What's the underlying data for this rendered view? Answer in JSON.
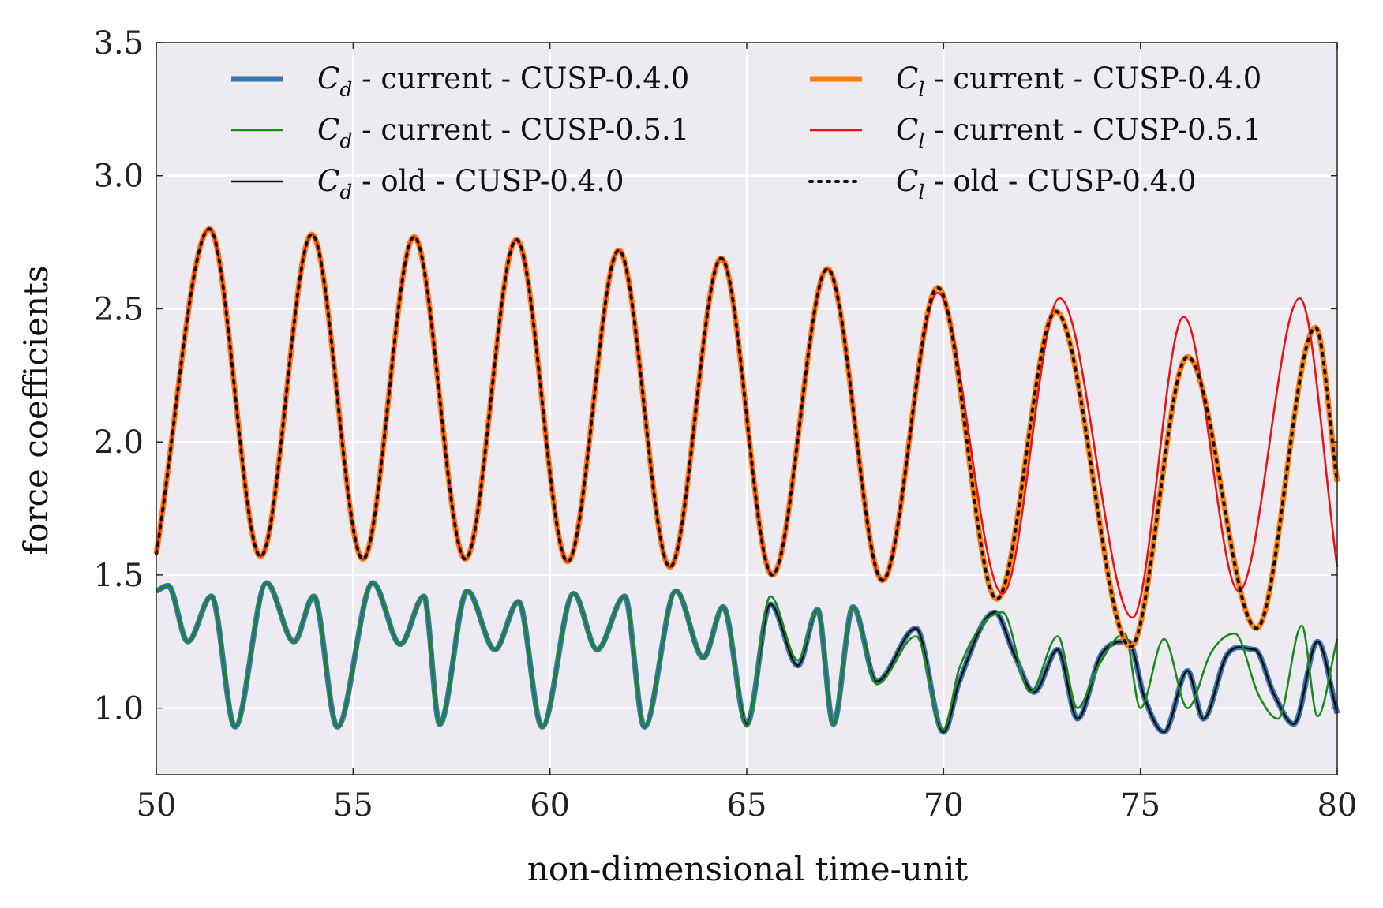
{
  "chart_data": {
    "type": "line",
    "title": "",
    "xlabel": "non-dimensional time-unit",
    "ylabel": "force coefficients",
    "xlim": [
      50,
      80
    ],
    "ylim": [
      0.75,
      3.5
    ],
    "xticks": [
      "50",
      "55",
      "60",
      "65",
      "70",
      "75",
      "80"
    ],
    "yticks": [
      "1.0",
      "1.5",
      "2.0",
      "2.5",
      "3.0",
      "3.5"
    ],
    "grid": true,
    "legend_position": "top",
    "background": "#eeeaf2",
    "series": [
      {
        "name": "C_d - current - CUSP-0.4.0",
        "label_symbol": "C",
        "label_sub": "d",
        "label_rest": " - current - CUSP-0.4.0",
        "color": "#3a77b0",
        "style": "thick",
        "x": [
          50.0,
          50.3,
          50.8,
          51.4,
          52.0,
          52.8,
          53.5,
          54.0,
          54.6,
          55.5,
          56.2,
          56.8,
          57.2,
          57.9,
          58.6,
          59.2,
          59.8,
          60.6,
          61.2,
          61.9,
          62.4,
          63.2,
          63.9,
          64.4,
          65.0,
          65.6,
          66.3,
          66.8,
          67.2,
          67.7,
          68.3,
          69.3,
          70.0,
          70.4,
          71.3,
          71.8,
          72.3,
          72.9,
          73.4,
          74.0,
          74.7,
          75.1,
          75.6,
          76.2,
          76.6,
          77.2,
          77.9,
          78.4,
          78.9,
          79.5,
          80.0
        ],
        "y": [
          1.44,
          1.46,
          1.25,
          1.42,
          0.93,
          1.47,
          1.25,
          1.42,
          0.93,
          1.47,
          1.24,
          1.42,
          0.94,
          1.44,
          1.22,
          1.4,
          0.93,
          1.43,
          1.22,
          1.42,
          0.93,
          1.44,
          1.19,
          1.38,
          0.94,
          1.39,
          1.16,
          1.37,
          0.94,
          1.38,
          1.1,
          1.3,
          0.91,
          1.1,
          1.36,
          1.2,
          1.06,
          1.22,
          0.96,
          1.2,
          1.25,
          1.04,
          0.91,
          1.14,
          0.96,
          1.2,
          1.22,
          1.05,
          0.94,
          1.25,
          0.98
        ]
      },
      {
        "name": "C_d - current - CUSP-0.5.1",
        "label_symbol": "C",
        "label_sub": "d",
        "label_rest": " - current - CUSP-0.5.1",
        "color": "#1a8a1a",
        "style": "thin",
        "x": [
          50.0,
          50.3,
          50.8,
          51.4,
          52.0,
          52.8,
          53.5,
          54.0,
          54.6,
          55.5,
          56.2,
          56.8,
          57.2,
          57.9,
          58.6,
          59.2,
          59.8,
          60.6,
          61.2,
          61.9,
          62.4,
          63.2,
          63.9,
          64.4,
          65.0,
          65.6,
          66.3,
          66.8,
          67.2,
          67.7,
          68.3,
          69.3,
          70.0,
          70.4,
          71.5,
          72.2,
          72.9,
          73.4,
          73.9,
          74.6,
          75.0,
          75.6,
          76.2,
          76.8,
          77.4,
          78.0,
          78.5,
          79.1,
          79.5,
          80.0
        ],
        "y": [
          1.44,
          1.46,
          1.25,
          1.42,
          0.93,
          1.47,
          1.25,
          1.42,
          0.93,
          1.47,
          1.24,
          1.42,
          0.94,
          1.44,
          1.22,
          1.4,
          0.93,
          1.43,
          1.22,
          1.42,
          0.93,
          1.44,
          1.19,
          1.38,
          0.93,
          1.42,
          1.18,
          1.37,
          0.94,
          1.38,
          1.09,
          1.27,
          0.92,
          1.15,
          1.36,
          1.06,
          1.27,
          1.0,
          1.15,
          1.28,
          1.0,
          1.26,
          1.0,
          1.21,
          1.28,
          1.05,
          0.96,
          1.31,
          0.97,
          1.26
        ]
      },
      {
        "name": "C_d - old - CUSP-0.4.0",
        "label_symbol": "C",
        "label_sub": "d",
        "label_rest": " - old - CUSP-0.4.0",
        "color": "#111111",
        "style": "thin",
        "x": [
          50.0,
          50.3,
          50.8,
          51.4,
          52.0,
          52.8,
          53.5,
          54.0,
          54.6,
          55.5,
          56.2,
          56.8,
          57.2,
          57.9,
          58.6,
          59.2,
          59.8,
          60.6,
          61.2,
          61.9,
          62.4,
          63.2,
          63.9,
          64.4,
          65.0,
          65.6,
          66.3,
          66.8,
          67.2,
          67.7,
          68.3,
          69.3,
          70.0,
          70.4,
          71.3,
          71.8,
          72.3,
          72.9,
          73.4,
          74.0,
          74.7,
          75.1,
          75.6,
          76.2,
          76.6,
          77.2,
          77.9,
          78.4,
          78.9,
          79.5,
          80.0
        ],
        "y": [
          1.44,
          1.46,
          1.25,
          1.42,
          0.93,
          1.47,
          1.25,
          1.42,
          0.93,
          1.47,
          1.24,
          1.42,
          0.94,
          1.44,
          1.22,
          1.4,
          0.93,
          1.43,
          1.22,
          1.42,
          0.93,
          1.44,
          1.19,
          1.38,
          0.94,
          1.39,
          1.16,
          1.37,
          0.94,
          1.38,
          1.1,
          1.3,
          0.91,
          1.1,
          1.36,
          1.2,
          1.06,
          1.22,
          0.96,
          1.2,
          1.25,
          1.04,
          0.91,
          1.14,
          0.96,
          1.2,
          1.22,
          1.05,
          0.94,
          1.25,
          0.98
        ]
      },
      {
        "name": "C_l - current - CUSP-0.4.0",
        "label_symbol": "C",
        "label_sub": "l",
        "label_rest": " - current - CUSP-0.4.0",
        "color": "#ff7f0e",
        "style": "thick",
        "x": [
          50.0,
          51.35,
          52.65,
          53.95,
          55.25,
          56.55,
          57.85,
          59.15,
          60.45,
          61.75,
          63.05,
          64.35,
          65.65,
          67.05,
          68.45,
          69.85,
          71.35,
          72.85,
          74.75,
          76.2,
          77.95,
          79.45,
          80.0
        ],
        "y": [
          1.58,
          2.8,
          1.57,
          2.78,
          1.56,
          2.77,
          1.56,
          2.76,
          1.55,
          2.72,
          1.53,
          2.69,
          1.5,
          2.65,
          1.48,
          2.58,
          1.41,
          2.49,
          1.23,
          2.32,
          1.3,
          2.43,
          1.85
        ]
      },
      {
        "name": "C_l - current - CUSP-0.5.1",
        "label_symbol": "C",
        "label_sub": "l",
        "label_rest": " - current - CUSP-0.5.1",
        "color": "#ee1111",
        "style": "thin",
        "x": [
          50.0,
          51.35,
          52.65,
          53.95,
          55.25,
          56.55,
          57.85,
          59.15,
          60.45,
          61.75,
          63.05,
          64.35,
          65.65,
          67.05,
          68.45,
          69.85,
          71.5,
          72.95,
          74.8,
          76.1,
          77.5,
          79.05,
          80.0
        ],
        "y": [
          1.58,
          2.8,
          1.57,
          2.78,
          1.56,
          2.77,
          1.56,
          2.76,
          1.55,
          2.72,
          1.53,
          2.69,
          1.5,
          2.65,
          1.48,
          2.56,
          1.43,
          2.54,
          1.34,
          2.47,
          1.44,
          2.54,
          1.53
        ]
      },
      {
        "name": "C_l - old - CUSP-0.4.0",
        "label_symbol": "C",
        "label_sub": "l",
        "label_rest": " - old - CUSP-0.4.0",
        "color": "#111111",
        "style": "dotted",
        "x": [
          50.0,
          51.35,
          52.65,
          53.95,
          55.25,
          56.55,
          57.85,
          59.15,
          60.45,
          61.75,
          63.05,
          64.35,
          65.65,
          67.05,
          68.45,
          69.85,
          71.35,
          72.85,
          74.75,
          76.2,
          77.95,
          79.45,
          80.0
        ],
        "y": [
          1.58,
          2.8,
          1.57,
          2.78,
          1.56,
          2.77,
          1.56,
          2.76,
          1.55,
          2.72,
          1.53,
          2.69,
          1.5,
          2.65,
          1.48,
          2.58,
          1.41,
          2.49,
          1.23,
          2.32,
          1.3,
          2.43,
          1.85
        ]
      }
    ]
  }
}
